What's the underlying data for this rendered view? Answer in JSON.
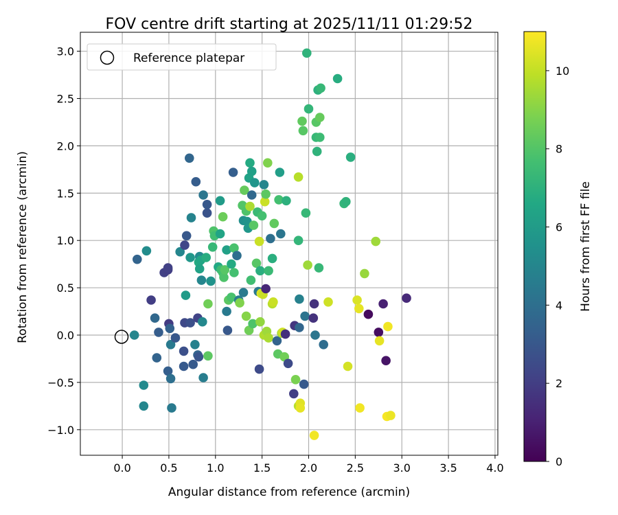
{
  "chart_data": {
    "type": "scatter",
    "title": "FOV centre drift starting at 2025/11/11 01:29:52",
    "xlabel": "Angular distance from reference (arcmin)",
    "ylabel": "Rotation from reference (arcmin)",
    "xlim": [
      -0.45,
      4.03
    ],
    "ylim": [
      -1.27,
      3.2
    ],
    "xticks": [
      0.0,
      0.5,
      1.0,
      1.5,
      2.0,
      2.5,
      3.0,
      3.5,
      4.0
    ],
    "xtick_labels": [
      "0.0",
      "0.5",
      "1.0",
      "1.5",
      "2.0",
      "2.5",
      "3.0",
      "3.5",
      "4.0"
    ],
    "yticks": [
      -1.0,
      -0.5,
      0.0,
      0.5,
      1.0,
      1.5,
      2.0,
      2.5,
      3.0
    ],
    "ytick_labels": [
      "−1.0",
      "−0.5",
      "0.0",
      "0.5",
      "1.0",
      "1.5",
      "2.0",
      "2.5",
      "3.0"
    ],
    "grid": true,
    "legend": {
      "position": "top-left",
      "entries": [
        "Reference platepar"
      ]
    },
    "reference_point": {
      "x": 0.0,
      "y": 0.0,
      "label": "Reference platepar"
    },
    "colorbar": {
      "label": "Hours from first FF file",
      "range": [
        0,
        11
      ],
      "ticks": [
        0,
        2,
        4,
        6,
        8,
        10
      ],
      "tick_labels": [
        "0",
        "2",
        "4",
        "6",
        "8",
        "10"
      ],
      "colormap": "viridis"
    },
    "points": [
      {
        "x": 0.13,
        "y": 0.0,
        "h": 5.0
      },
      {
        "x": 0.16,
        "y": 0.8,
        "h": 3.5
      },
      {
        "x": 0.23,
        "y": -0.53,
        "h": 5.2
      },
      {
        "x": 0.23,
        "y": -0.75,
        "h": 5.0
      },
      {
        "x": 0.26,
        "y": 0.89,
        "h": 5.3
      },
      {
        "x": 0.31,
        "y": 0.37,
        "h": 2.0
      },
      {
        "x": 0.35,
        "y": 0.18,
        "h": 3.7
      },
      {
        "x": 0.37,
        "y": -0.24,
        "h": 3.5
      },
      {
        "x": 0.39,
        "y": 0.03,
        "h": 3.2
      },
      {
        "x": 0.45,
        "y": 0.66,
        "h": 2.1
      },
      {
        "x": 0.49,
        "y": 0.69,
        "h": 2.0
      },
      {
        "x": 0.49,
        "y": 0.71,
        "h": 2.1
      },
      {
        "x": 0.49,
        "y": -0.38,
        "h": 3.3
      },
      {
        "x": 0.5,
        "y": 0.12,
        "h": 1.9
      },
      {
        "x": 0.51,
        "y": 0.07,
        "h": 3.4
      },
      {
        "x": 0.52,
        "y": -0.46,
        "h": 4.0
      },
      {
        "x": 0.52,
        "y": -0.1,
        "h": 4.5
      },
      {
        "x": 0.53,
        "y": -0.77,
        "h": 4.5
      },
      {
        "x": 0.57,
        "y": -0.03,
        "h": 3.0
      },
      {
        "x": 0.62,
        "y": 0.88,
        "h": 5.0
      },
      {
        "x": 0.66,
        "y": -0.17,
        "h": 2.7
      },
      {
        "x": 0.66,
        "y": -0.33,
        "h": 3.1
      },
      {
        "x": 0.67,
        "y": 0.95,
        "h": 2.3
      },
      {
        "x": 0.67,
        "y": 0.13,
        "h": 2.4
      },
      {
        "x": 0.68,
        "y": 0.42,
        "h": 6.0
      },
      {
        "x": 0.69,
        "y": 1.05,
        "h": 3.0
      },
      {
        "x": 0.72,
        "y": 1.87,
        "h": 3.6
      },
      {
        "x": 0.73,
        "y": 0.82,
        "h": 5.8
      },
      {
        "x": 0.73,
        "y": 0.13,
        "h": 2.7
      },
      {
        "x": 0.74,
        "y": 1.24,
        "h": 4.9
      },
      {
        "x": 0.76,
        "y": -0.31,
        "h": 3.1
      },
      {
        "x": 0.78,
        "y": -0.1,
        "h": 4.8
      },
      {
        "x": 0.79,
        "y": 1.62,
        "h": 3.2
      },
      {
        "x": 0.81,
        "y": 0.18,
        "h": 2.2
      },
      {
        "x": 0.81,
        "y": -0.21,
        "h": 3.5
      },
      {
        "x": 0.82,
        "y": 0.77,
        "h": 6.7
      },
      {
        "x": 0.82,
        "y": -0.23,
        "h": 2.9
      },
      {
        "x": 0.83,
        "y": 0.83,
        "h": 5.2
      },
      {
        "x": 0.83,
        "y": 0.7,
        "h": 6.3
      },
      {
        "x": 0.84,
        "y": 0.79,
        "h": 6.5
      },
      {
        "x": 0.85,
        "y": 0.58,
        "h": 5.0
      },
      {
        "x": 0.86,
        "y": 0.14,
        "h": 5.1
      },
      {
        "x": 0.87,
        "y": -0.45,
        "h": 4.6
      },
      {
        "x": 0.87,
        "y": 1.48,
        "h": 4.3
      },
      {
        "x": 0.9,
        "y": 0.82,
        "h": 6.8
      },
      {
        "x": 0.91,
        "y": 1.29,
        "h": 2.8
      },
      {
        "x": 0.91,
        "y": 1.38,
        "h": 3.0
      },
      {
        "x": 0.92,
        "y": 0.33,
        "h": 8.6
      },
      {
        "x": 0.92,
        "y": -0.22,
        "h": 8.2
      },
      {
        "x": 0.95,
        "y": 0.57,
        "h": 5.6
      },
      {
        "x": 0.97,
        "y": 0.93,
        "h": 7.3
      },
      {
        "x": 0.98,
        "y": 1.1,
        "h": 7.9
      },
      {
        "x": 0.99,
        "y": 1.05,
        "h": 7.6
      },
      {
        "x": 1.03,
        "y": 0.72,
        "h": 6.6
      },
      {
        "x": 1.05,
        "y": 1.42,
        "h": 6.0
      },
      {
        "x": 1.05,
        "y": 1.07,
        "h": 6.4
      },
      {
        "x": 1.06,
        "y": 0.69,
        "h": 7.5
      },
      {
        "x": 1.08,
        "y": 1.25,
        "h": 8.5
      },
      {
        "x": 1.08,
        "y": 0.66,
        "h": 7.7
      },
      {
        "x": 1.09,
        "y": 0.61,
        "h": 7.9
      },
      {
        "x": 1.1,
        "y": 0.69,
        "h": 8.1
      },
      {
        "x": 1.12,
        "y": 0.25,
        "h": 4.5
      },
      {
        "x": 1.12,
        "y": 0.9,
        "h": 6.2
      },
      {
        "x": 1.13,
        "y": 0.05,
        "h": 3.0
      },
      {
        "x": 1.14,
        "y": 0.37,
        "h": 8.2
      },
      {
        "x": 1.17,
        "y": 0.4,
        "h": 7.8
      },
      {
        "x": 1.17,
        "y": 0.75,
        "h": 6.7
      },
      {
        "x": 1.19,
        "y": 1.72,
        "h": 3.3
      },
      {
        "x": 1.2,
        "y": 0.66,
        "h": 7.7
      },
      {
        "x": 1.2,
        "y": 0.92,
        "h": 7.8
      },
      {
        "x": 1.23,
        "y": 0.84,
        "h": 4.0
      },
      {
        "x": 1.25,
        "y": 0.37,
        "h": 4.6
      },
      {
        "x": 1.26,
        "y": 0.34,
        "h": 8.9
      },
      {
        "x": 1.29,
        "y": 1.37,
        "h": 8.0
      },
      {
        "x": 1.3,
        "y": 0.45,
        "h": 4.5
      },
      {
        "x": 1.3,
        "y": 1.21,
        "h": 5.4
      },
      {
        "x": 1.31,
        "y": 1.53,
        "h": 8.4
      },
      {
        "x": 1.33,
        "y": 1.31,
        "h": 7.9
      },
      {
        "x": 1.33,
        "y": 0.2,
        "h": 9.0
      },
      {
        "x": 1.34,
        "y": 1.2,
        "h": 5.6
      },
      {
        "x": 1.35,
        "y": 1.13,
        "h": 5.8
      },
      {
        "x": 1.36,
        "y": 1.66,
        "h": 6.3
      },
      {
        "x": 1.36,
        "y": 0.05,
        "h": 8.6
      },
      {
        "x": 1.37,
        "y": 1.82,
        "h": 6.7
      },
      {
        "x": 1.37,
        "y": 1.36,
        "h": 9.6
      },
      {
        "x": 1.38,
        "y": 0.58,
        "h": 7.6
      },
      {
        "x": 1.39,
        "y": 1.73,
        "h": 6.2
      },
      {
        "x": 1.39,
        "y": 1.48,
        "h": 3.7
      },
      {
        "x": 1.4,
        "y": 0.12,
        "h": 7.9
      },
      {
        "x": 1.41,
        "y": 1.16,
        "h": 8.1
      },
      {
        "x": 1.42,
        "y": 1.61,
        "h": 5.7
      },
      {
        "x": 1.44,
        "y": 0.76,
        "h": 8.1
      },
      {
        "x": 1.45,
        "y": 1.3,
        "h": 7.4
      },
      {
        "x": 1.46,
        "y": 0.46,
        "h": 4.5
      },
      {
        "x": 1.47,
        "y": 0.99,
        "h": 10.1
      },
      {
        "x": 1.47,
        "y": -0.36,
        "h": 2.5
      },
      {
        "x": 1.48,
        "y": 0.68,
        "h": 6.9
      },
      {
        "x": 1.48,
        "y": 0.14,
        "h": 9.2
      },
      {
        "x": 1.49,
        "y": 0.44,
        "h": 10.4
      },
      {
        "x": 1.5,
        "y": 1.26,
        "h": 7.7
      },
      {
        "x": 1.51,
        "y": 0.43,
        "h": 10.1
      },
      {
        "x": 1.52,
        "y": 0.0,
        "h": 9.7
      },
      {
        "x": 1.52,
        "y": 1.59,
        "h": 5.0
      },
      {
        "x": 1.53,
        "y": 1.41,
        "h": 10.1
      },
      {
        "x": 1.54,
        "y": 1.49,
        "h": 8.2
      },
      {
        "x": 1.54,
        "y": 0.49,
        "h": 1.2
      },
      {
        "x": 1.55,
        "y": 0.04,
        "h": 9.4
      },
      {
        "x": 1.56,
        "y": 1.82,
        "h": 8.9
      },
      {
        "x": 1.57,
        "y": -0.03,
        "h": 9.6
      },
      {
        "x": 1.57,
        "y": 0.68,
        "h": 7.4
      },
      {
        "x": 1.59,
        "y": 1.02,
        "h": 4.0
      },
      {
        "x": 1.61,
        "y": 0.81,
        "h": 6.9
      },
      {
        "x": 1.61,
        "y": 0.33,
        "h": 9.8
      },
      {
        "x": 1.62,
        "y": 0.35,
        "h": 10.1
      },
      {
        "x": 1.63,
        "y": 1.18,
        "h": 8.3
      },
      {
        "x": 1.66,
        "y": -0.06,
        "h": 3.5
      },
      {
        "x": 1.67,
        "y": -0.2,
        "h": 8.2
      },
      {
        "x": 1.68,
        "y": 1.43,
        "h": 7.7
      },
      {
        "x": 1.69,
        "y": 1.72,
        "h": 6.1
      },
      {
        "x": 1.7,
        "y": 1.07,
        "h": 4.3
      },
      {
        "x": 1.71,
        "y": 0.02,
        "h": 9.5
      },
      {
        "x": 1.72,
        "y": 0.03,
        "h": 10.2
      },
      {
        "x": 1.74,
        "y": -0.23,
        "h": 8.6
      },
      {
        "x": 1.75,
        "y": 0.01,
        "h": 1.5
      },
      {
        "x": 1.76,
        "y": 1.42,
        "h": 7.0
      },
      {
        "x": 1.78,
        "y": -0.3,
        "h": 2.5
      },
      {
        "x": 1.84,
        "y": -0.62,
        "h": 2.0
      },
      {
        "x": 1.85,
        "y": 0.1,
        "h": 1.7
      },
      {
        "x": 1.86,
        "y": -0.47,
        "h": 8.8
      },
      {
        "x": 1.89,
        "y": 1.67,
        "h": 9.8
      },
      {
        "x": 1.89,
        "y": 1.0,
        "h": 7.2
      },
      {
        "x": 1.89,
        "y": -0.75,
        "h": 9.8
      },
      {
        "x": 1.9,
        "y": 0.08,
        "h": 3.6
      },
      {
        "x": 1.9,
        "y": 0.38,
        "h": 4.8
      },
      {
        "x": 1.91,
        "y": -0.72,
        "h": 10.5
      },
      {
        "x": 1.91,
        "y": -0.77,
        "h": 10.6
      },
      {
        "x": 1.93,
        "y": 2.26,
        "h": 8.3
      },
      {
        "x": 1.94,
        "y": 2.16,
        "h": 8.1
      },
      {
        "x": 1.95,
        "y": -0.52,
        "h": 3.1
      },
      {
        "x": 1.96,
        "y": 0.2,
        "h": 4.2
      },
      {
        "x": 1.97,
        "y": 1.29,
        "h": 7.3
      },
      {
        "x": 1.98,
        "y": 2.98,
        "h": 7.1
      },
      {
        "x": 1.99,
        "y": 0.74,
        "h": 9.4
      },
      {
        "x": 2.0,
        "y": 2.39,
        "h": 7.2
      },
      {
        "x": 2.05,
        "y": 0.18,
        "h": 1.6
      },
      {
        "x": 2.06,
        "y": 0.33,
        "h": 1.6
      },
      {
        "x": 2.06,
        "y": -1.06,
        "h": 10.8
      },
      {
        "x": 2.07,
        "y": 0.0,
        "h": 4.3
      },
      {
        "x": 2.08,
        "y": 2.25,
        "h": 8.1
      },
      {
        "x": 2.08,
        "y": 2.09,
        "h": 7.3
      },
      {
        "x": 2.09,
        "y": 1.94,
        "h": 7.1
      },
      {
        "x": 2.1,
        "y": 2.59,
        "h": 7.0
      },
      {
        "x": 2.11,
        "y": 0.71,
        "h": 7.3
      },
      {
        "x": 2.12,
        "y": 2.3,
        "h": 8.4
      },
      {
        "x": 2.12,
        "y": 2.09,
        "h": 7.5
      },
      {
        "x": 2.13,
        "y": 2.61,
        "h": 7.3
      },
      {
        "x": 2.16,
        "y": -0.1,
        "h": 3.9
      },
      {
        "x": 2.21,
        "y": 0.35,
        "h": 10.2
      },
      {
        "x": 2.31,
        "y": 2.71,
        "h": 6.8
      },
      {
        "x": 2.38,
        "y": 1.39,
        "h": 7.2
      },
      {
        "x": 2.4,
        "y": 1.41,
        "h": 7.1
      },
      {
        "x": 2.42,
        "y": -0.33,
        "h": 10.3
      },
      {
        "x": 2.45,
        "y": 1.88,
        "h": 6.9
      },
      {
        "x": 2.52,
        "y": 0.37,
        "h": 10.4
      },
      {
        "x": 2.54,
        "y": 0.28,
        "h": 10.6
      },
      {
        "x": 2.55,
        "y": -0.77,
        "h": 10.8
      },
      {
        "x": 2.6,
        "y": 0.65,
        "h": 9.3
      },
      {
        "x": 2.64,
        "y": 0.22,
        "h": 0.3
      },
      {
        "x": 2.72,
        "y": 0.99,
        "h": 9.4
      },
      {
        "x": 2.75,
        "y": 0.03,
        "h": 0.4
      },
      {
        "x": 2.76,
        "y": -0.06,
        "h": 10.6
      },
      {
        "x": 2.8,
        "y": 0.33,
        "h": 1.0
      },
      {
        "x": 2.83,
        "y": -0.27,
        "h": 0.6
      },
      {
        "x": 2.84,
        "y": -0.86,
        "h": 10.9
      },
      {
        "x": 2.85,
        "y": 0.09,
        "h": 10.8
      },
      {
        "x": 2.88,
        "y": -0.85,
        "h": 10.7
      },
      {
        "x": 3.05,
        "y": 0.39,
        "h": 1.3
      }
    ]
  }
}
